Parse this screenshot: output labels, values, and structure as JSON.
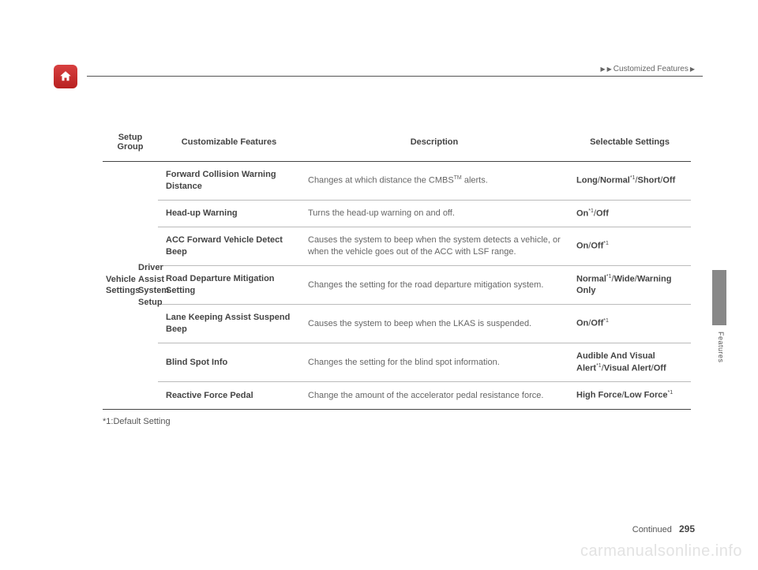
{
  "breadcrumb": {
    "text": "Customized Features"
  },
  "sideLabel": "Features",
  "headers": {
    "group": "Setup Group",
    "features": "Customizable Features",
    "description": "Description",
    "settings": "Selectable Settings"
  },
  "groupCell": "Vehicle Settings",
  "subCell": "Driver Assist System Setup",
  "rows": [
    {
      "feature": "Forward Collision Warning Distance",
      "desc_pre": "Changes at which distance the CMBS",
      "desc_tm": "TM",
      "desc_post": " alerts.",
      "settings_html": "<b>Long</b>/<b>Normal</b><span class=\"sup\">*1</span>/<b>Short</b>/<b>Off</b>"
    },
    {
      "feature": "Head-up Warning",
      "desc": "Turns the head-up warning on and off.",
      "settings_html": "<b>On</b><span class=\"sup\">*1</span>/<b>Off</b>"
    },
    {
      "feature": "ACC Forward Vehicle Detect Beep",
      "desc": "Causes the system to beep when the system detects a vehicle, or when the vehicle goes out of the ACC with LSF range.",
      "settings_html": "<b>On</b>/<b>Off</b><span class=\"sup\">*1</span>"
    },
    {
      "feature": "Road Departure Mitigation Setting",
      "desc": "Changes the setting for the road departure mitigation system.",
      "settings_html": "<b>Normal</b><span class=\"sup\">*1</span>/<b>Wide</b>/<b>Warning Only</b>"
    },
    {
      "feature": "Lane Keeping Assist Suspend Beep",
      "desc": "Causes the system to beep when the LKAS is suspended.",
      "settings_html": "<b>On</b>/<b>Off</b><span class=\"sup\">*1</span>"
    },
    {
      "feature": "Blind Spot Info",
      "desc": "Changes the setting for the blind spot information.",
      "settings_html": "<b>Audible And Visual Alert</b><span class=\"sup\">*1</span>/<b>Visual Alert</b>/<b>Off</b>"
    },
    {
      "feature": "Reactive Force Pedal",
      "desc": "Change the amount of the accelerator pedal resistance force.",
      "settings_html": "<b>High Force</b>/<b>Low Force</b><span class=\"sup\">*1</span>"
    }
  ],
  "footnote": "*1:Default Setting",
  "pageFooter": {
    "continued": "Continued",
    "number": "295"
  },
  "watermark": "carmanualsonline.info"
}
